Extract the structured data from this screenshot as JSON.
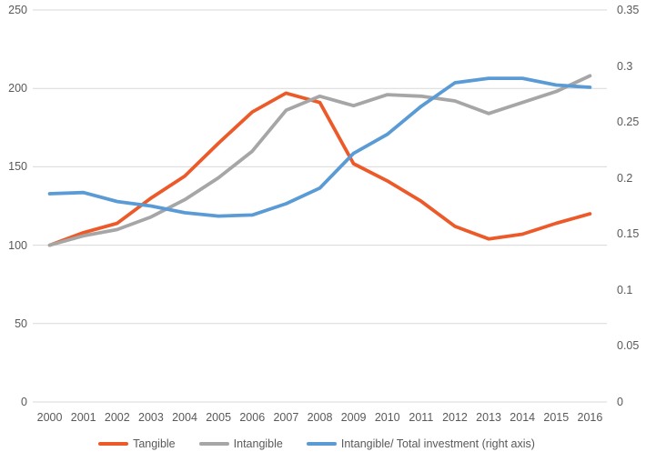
{
  "chart_data": {
    "type": "line",
    "title": "",
    "categories": [
      "2000",
      "2001",
      "2002",
      "2003",
      "2004",
      "2005",
      "2006",
      "2007",
      "2008",
      "2009",
      "2010",
      "2011",
      "2012",
      "2013",
      "2014",
      "2015",
      "2016"
    ],
    "series": [
      {
        "name": "Tangible",
        "axis": "left",
        "color": "#ED5A29",
        "values": [
          100,
          108,
          114,
          130,
          144,
          165,
          185,
          197,
          191,
          152,
          141,
          128,
          112,
          104,
          107,
          114,
          120
        ]
      },
      {
        "name": "Intangible",
        "axis": "left",
        "color": "#A6A6A6",
        "values": [
          100,
          106,
          110,
          118,
          129,
          143,
          160,
          186,
          195,
          189,
          196,
          195,
          192,
          184,
          191,
          198,
          208
        ]
      },
      {
        "name": "Intangible/ Total investment (right axis)",
        "axis": "right",
        "color": "#5B9BD5",
        "values": [
          0.186,
          0.187,
          0.179,
          0.175,
          0.169,
          0.166,
          0.167,
          0.177,
          0.191,
          0.222,
          0.239,
          0.264,
          0.285,
          0.289,
          0.289,
          0.283,
          0.281
        ]
      }
    ],
    "left_axis": {
      "min": 0,
      "max": 250,
      "ticks": [
        "0",
        "50",
        "100",
        "150",
        "200",
        "250"
      ]
    },
    "right_axis": {
      "min": 0,
      "max": 0.35,
      "ticks": [
        "0",
        "0.05",
        "0.1",
        "0.15",
        "0.2",
        "0.25",
        "0.3",
        "0.35"
      ]
    },
    "grid": true,
    "legend_position": "bottom"
  },
  "colors": {
    "grid": "#D9D9D9",
    "axis_text": "#595959",
    "background": "#FFFFFF"
  }
}
